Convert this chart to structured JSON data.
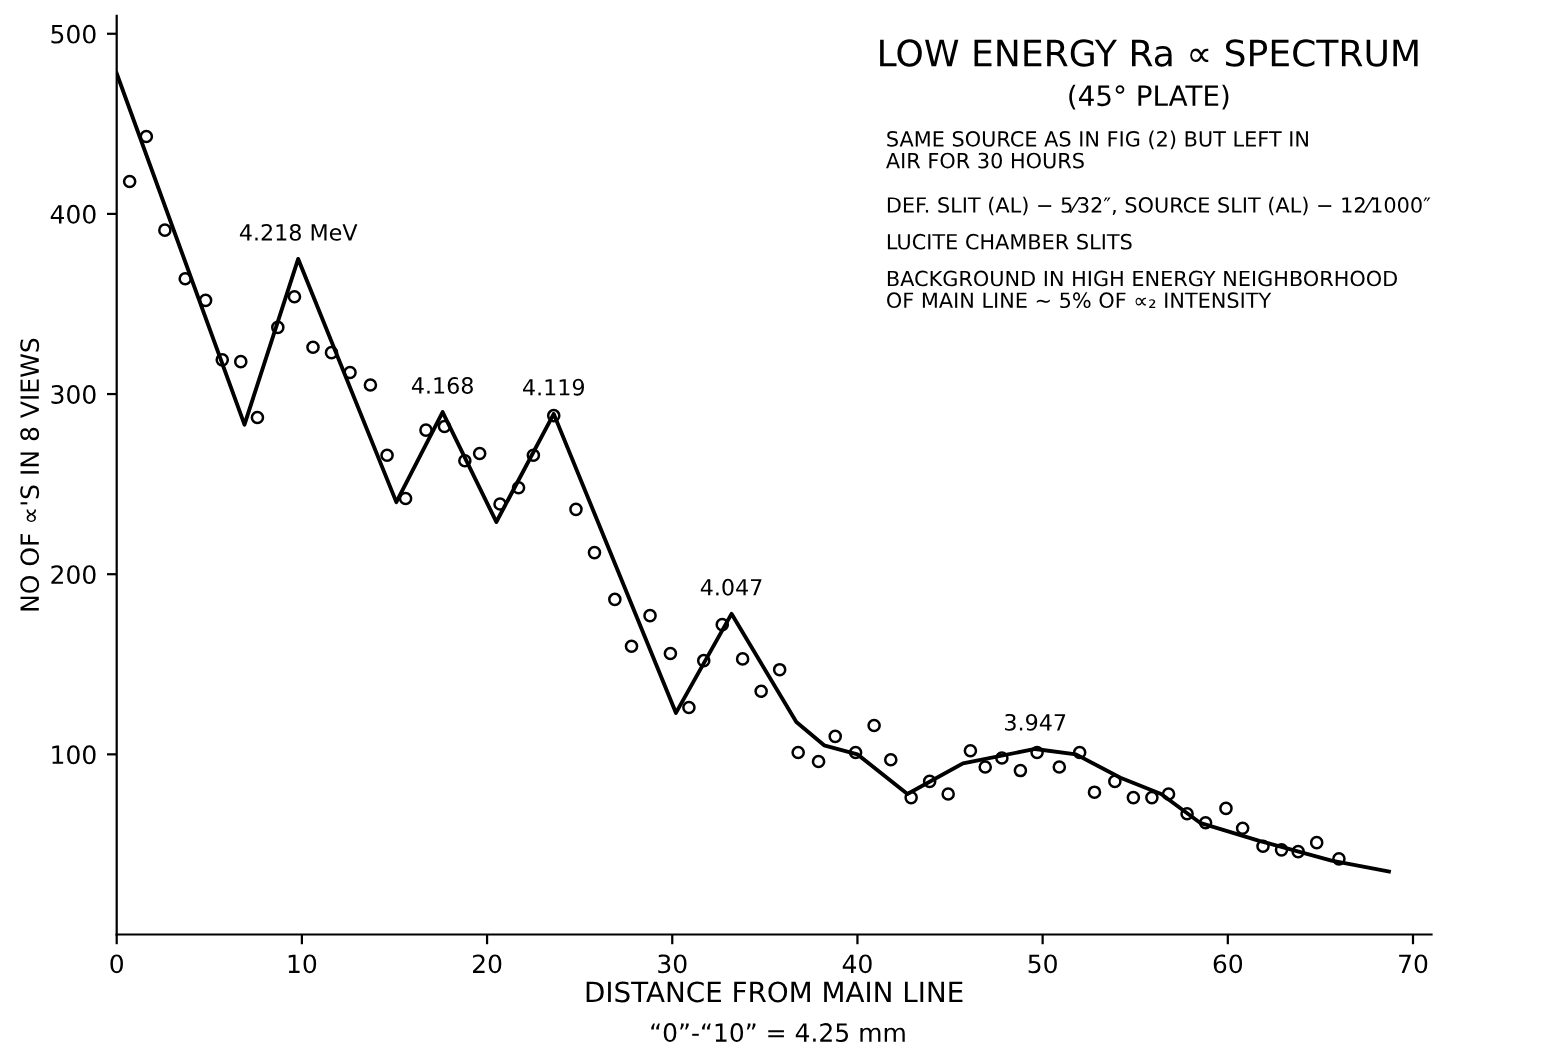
{
  "chart_data": {
    "type": "scatter",
    "title": "LOW ENERGY Ra ∝ SPECTRUM",
    "subtitle": "(45° PLATE)",
    "xlabel": "DISTANCE FROM MAIN LINE",
    "ylabel": "NO OF ∝'S IN 8 VIEWS",
    "xlim": [
      0,
      71
    ],
    "ylim": [
      0,
      510
    ],
    "xticks": [
      0,
      10,
      20,
      30,
      40,
      50,
      60,
      70
    ],
    "yticks": [
      100,
      200,
      300,
      400,
      500
    ],
    "grid": false,
    "legend": false,
    "series": [
      {
        "marker": "circle",
        "color": "#000000",
        "x": [
          0.7,
          1.6,
          2.6,
          3.7,
          4.8,
          5.7,
          6.7,
          7.6,
          8.7,
          9.6,
          10.6,
          11.6,
          12.6,
          13.7,
          14.6,
          15.6,
          16.7,
          17.7,
          18.8,
          19.6,
          20.7,
          21.7,
          22.5,
          23.6,
          24.8,
          25.8,
          26.9,
          27.8,
          28.8,
          29.9,
          30.9,
          31.7,
          32.7,
          33.8,
          34.8,
          35.8,
          36.8,
          37.9,
          38.8,
          39.9,
          40.9,
          41.8,
          42.9,
          43.9,
          44.9,
          46.1,
          46.9,
          47.8,
          48.8,
          49.7,
          50.9,
          52.0,
          52.8,
          53.9,
          54.9,
          55.9,
          56.8,
          57.8,
          58.8,
          59.9,
          60.8,
          61.9,
          62.9,
          63.8,
          64.8,
          66.0
        ],
        "values": [
          418,
          443,
          391,
          364,
          352,
          319,
          318,
          287,
          337,
          354,
          326,
          323,
          312,
          305,
          266,
          242,
          280,
          282,
          263,
          267,
          239,
          248,
          266,
          288,
          236,
          212,
          186,
          160,
          177,
          156,
          126,
          152,
          172,
          153,
          135,
          147,
          101,
          96,
          110,
          101,
          116,
          97,
          76,
          85,
          78,
          102,
          93,
          98,
          91,
          101,
          93,
          101,
          79,
          85,
          76,
          76,
          78,
          67,
          62,
          70,
          59,
          49,
          47,
          46,
          51,
          42
        ]
      },
      {
        "type": "line",
        "marker": "none",
        "line_style": "solid",
        "color": "#000000",
        "x": [
          0,
          6.9,
          9.8,
          15.1,
          17.6,
          20.5,
          23.6,
          30.2,
          33.2,
          36.7,
          38.2,
          40,
          42.7,
          45.7,
          49.6,
          51.8,
          54.2,
          56.4,
          58.5,
          61.7,
          65.6,
          68.7
        ],
        "values": [
          478,
          283,
          375,
          240,
          290,
          229,
          289,
          123,
          178,
          118,
          105,
          100,
          78,
          95,
          103,
          100,
          87,
          78,
          62,
          52,
          41,
          35
        ]
      }
    ],
    "annotations": [
      {
        "text": "4.218 MeV",
        "x": 9.8,
        "y": 375
      },
      {
        "text": "4.168",
        "x": 17.6,
        "y": 290
      },
      {
        "text": "4.119",
        "x": 23.6,
        "y": 289
      },
      {
        "text": "4.047",
        "x": 33.2,
        "y": 178
      },
      {
        "text": "3.947",
        "x": 49.6,
        "y": 103
      },
      "SAME SOURCE AS IN FIG (2) BUT LEFT IN\nAIR FOR 30 HOURS",
      "DEF. SLIT (AL) − 5⁄32″, SOURCE SLIT (AL) − 12⁄1000″",
      "LUCITE CHAMBER SLITS",
      "BACKGROUND IN HIGH ENERGY NEIGHBORHOOD\nOF MAIN LINE ~ 5% OF ∝₂ INTENSITY",
      "“0”-“10” = 4.25 mm"
    ]
  }
}
